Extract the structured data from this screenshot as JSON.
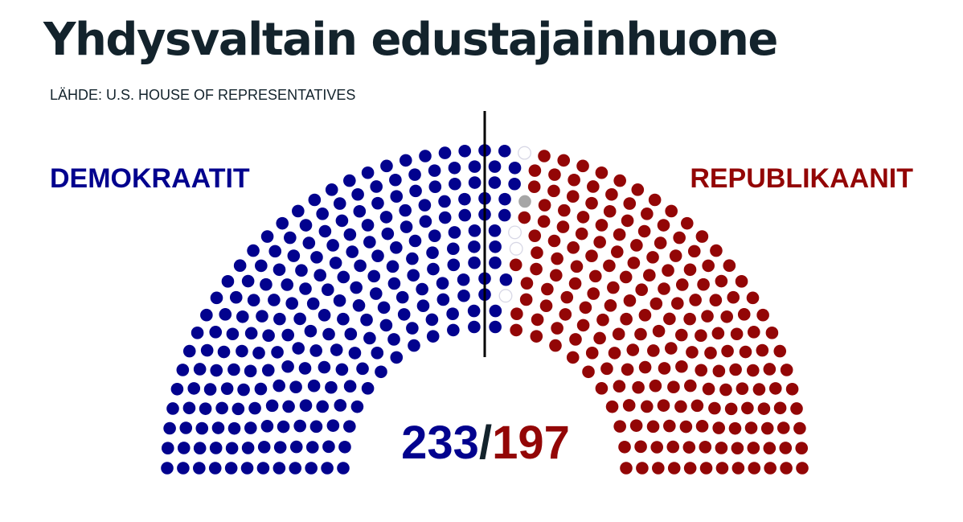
{
  "title": "Yhdysvaltain edustajainhuone",
  "source": "LÄHDE: U.S. HOUSE OF REPRESENTATIVES",
  "colors": {
    "text": "#13232c",
    "democrats": "#02028e",
    "republicans": "#930606",
    "vacant_fill": "#ffffff",
    "vacant_stroke": "#d8d8e6",
    "other": "#a6a6a6",
    "divider": "#000000"
  },
  "chart_data": {
    "type": "parliament",
    "total_seats": 435,
    "separator": "/",
    "parties": [
      {
        "name": "DEMOKRAATIT",
        "seats": 233,
        "color": "#02028e",
        "side": "left"
      },
      {
        "name": "",
        "seats": 4,
        "color": "vacant",
        "side": "center"
      },
      {
        "name": "",
        "seats": 1,
        "color": "#a6a6a6",
        "side": "center"
      },
      {
        "name": "REPUBLIKAANIT",
        "seats": 197,
        "color": "#930606",
        "side": "right"
      }
    ]
  }
}
